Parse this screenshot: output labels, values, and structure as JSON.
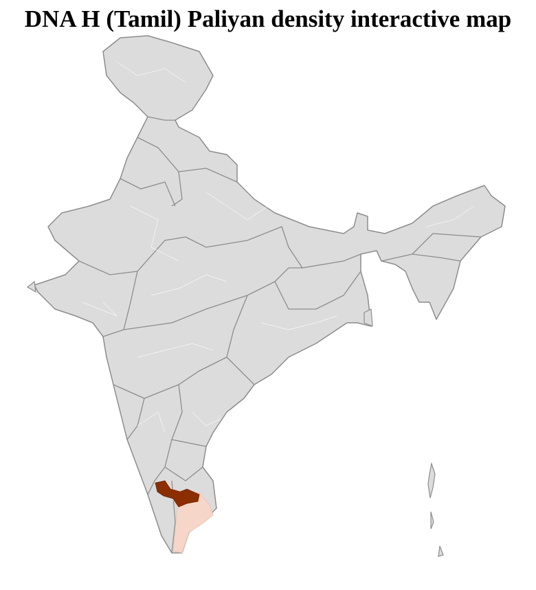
{
  "title": "DNA H (Tamil) Paliyan density interactive map"
}
